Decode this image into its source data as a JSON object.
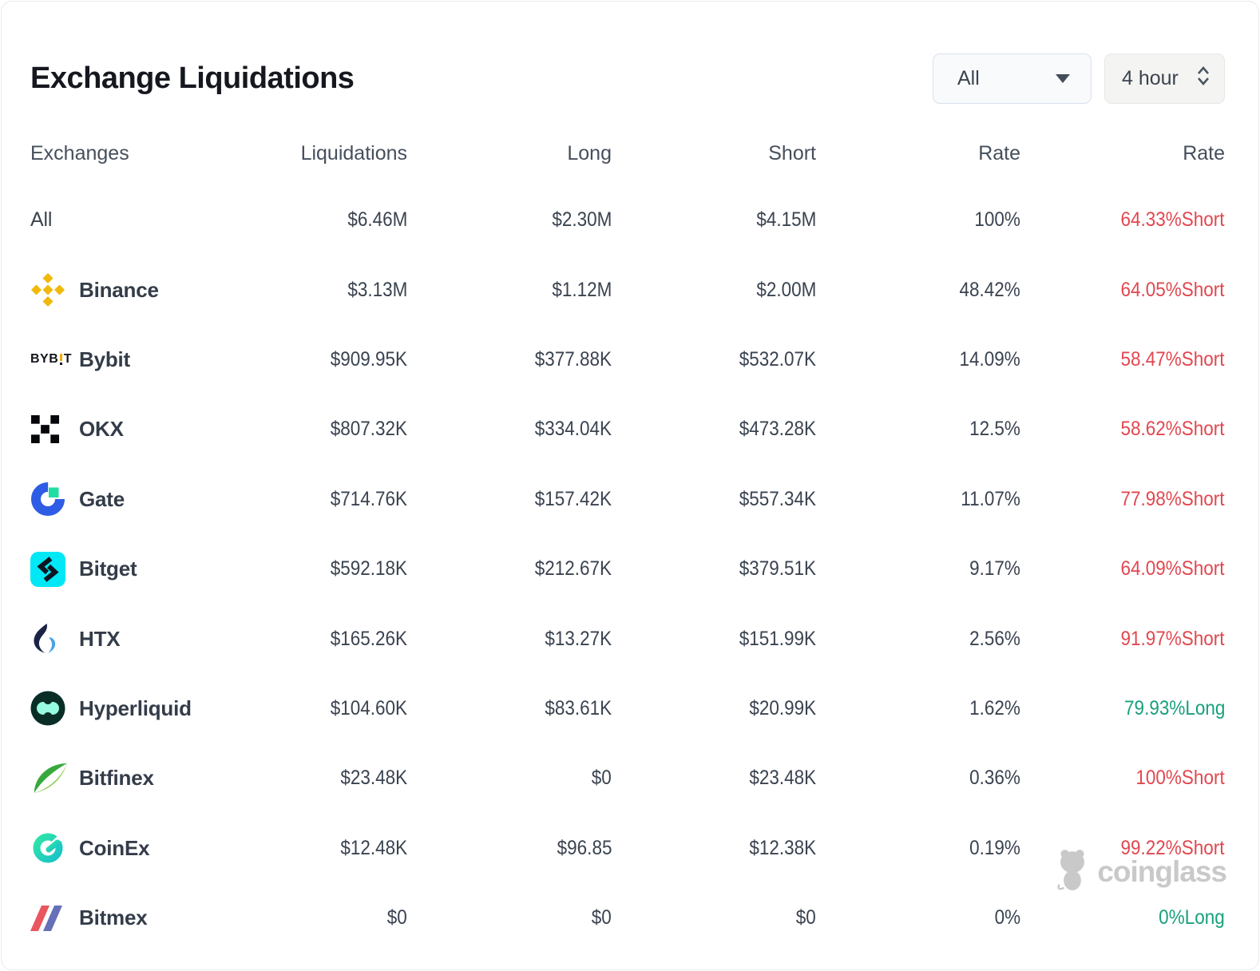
{
  "card": {
    "title": "Exchange Liquidations"
  },
  "controls": {
    "exchange_select": {
      "value": "All",
      "icon": "chevron-down-icon"
    },
    "interval_select": {
      "value": "4 hour",
      "icon": "up-down-chevron-icon"
    }
  },
  "table": {
    "columns": [
      "Exchanges",
      "Liquidations",
      "Long",
      "Short",
      "Rate",
      "Rate"
    ],
    "rows": [
      {
        "id": "all",
        "name": "All",
        "icon": null,
        "liquidations": "$6.46M",
        "long": "$2.30M",
        "short": "$4.15M",
        "rate": "100%",
        "rate2": "64.33%Short",
        "rate2_side": "short"
      },
      {
        "id": "binance",
        "name": "Binance",
        "icon": "binance-icon",
        "liquidations": "$3.13M",
        "long": "$1.12M",
        "short": "$2.00M",
        "rate": "48.42%",
        "rate2": "64.05%Short",
        "rate2_side": "short"
      },
      {
        "id": "bybit",
        "name": "Bybit",
        "icon": "bybit-icon",
        "liquidations": "$909.95K",
        "long": "$377.88K",
        "short": "$532.07K",
        "rate": "14.09%",
        "rate2": "58.47%Short",
        "rate2_side": "short"
      },
      {
        "id": "okx",
        "name": "OKX",
        "icon": "okx-icon",
        "liquidations": "$807.32K",
        "long": "$334.04K",
        "short": "$473.28K",
        "rate": "12.5%",
        "rate2": "58.62%Short",
        "rate2_side": "short"
      },
      {
        "id": "gate",
        "name": "Gate",
        "icon": "gate-icon",
        "liquidations": "$714.76K",
        "long": "$157.42K",
        "short": "$557.34K",
        "rate": "11.07%",
        "rate2": "77.98%Short",
        "rate2_side": "short"
      },
      {
        "id": "bitget",
        "name": "Bitget",
        "icon": "bitget-icon",
        "liquidations": "$592.18K",
        "long": "$212.67K",
        "short": "$379.51K",
        "rate": "9.17%",
        "rate2": "64.09%Short",
        "rate2_side": "short"
      },
      {
        "id": "htx",
        "name": "HTX",
        "icon": "htx-icon",
        "liquidations": "$165.26K",
        "long": "$13.27K",
        "short": "$151.99K",
        "rate": "2.56%",
        "rate2": "91.97%Short",
        "rate2_side": "short"
      },
      {
        "id": "hyperliquid",
        "name": "Hyperliquid",
        "icon": "hyperliquid-icon",
        "liquidations": "$104.60K",
        "long": "$83.61K",
        "short": "$20.99K",
        "rate": "1.62%",
        "rate2": "79.93%Long",
        "rate2_side": "long"
      },
      {
        "id": "bitfinex",
        "name": "Bitfinex",
        "icon": "bitfinex-icon",
        "liquidations": "$23.48K",
        "long": "$0",
        "short": "$23.48K",
        "rate": "0.36%",
        "rate2": "100%Short",
        "rate2_side": "short"
      },
      {
        "id": "coinex",
        "name": "CoinEx",
        "icon": "coinex-icon",
        "liquidations": "$12.48K",
        "long": "$96.85",
        "short": "$12.38K",
        "rate": "0.19%",
        "rate2": "99.22%Short",
        "rate2_side": "short"
      },
      {
        "id": "bitmex",
        "name": "Bitmex",
        "icon": "bitmex-icon",
        "liquidations": "$0",
        "long": "$0",
        "short": "$0",
        "rate": "0%",
        "rate2": "0%Long",
        "rate2_side": "long"
      }
    ]
  },
  "watermark": {
    "label": "coinglass",
    "icon": "coinglass-mascot-icon"
  },
  "colors": {
    "short_red": "#e2474f",
    "long_green": "#18a07c",
    "binance_yellow": "#f0b90b",
    "bybit_orange": "#f7a600",
    "bitget_cyan": "#00e8f6",
    "gate_blue": "#2e5ce5",
    "gate_green": "#21dda3"
  }
}
